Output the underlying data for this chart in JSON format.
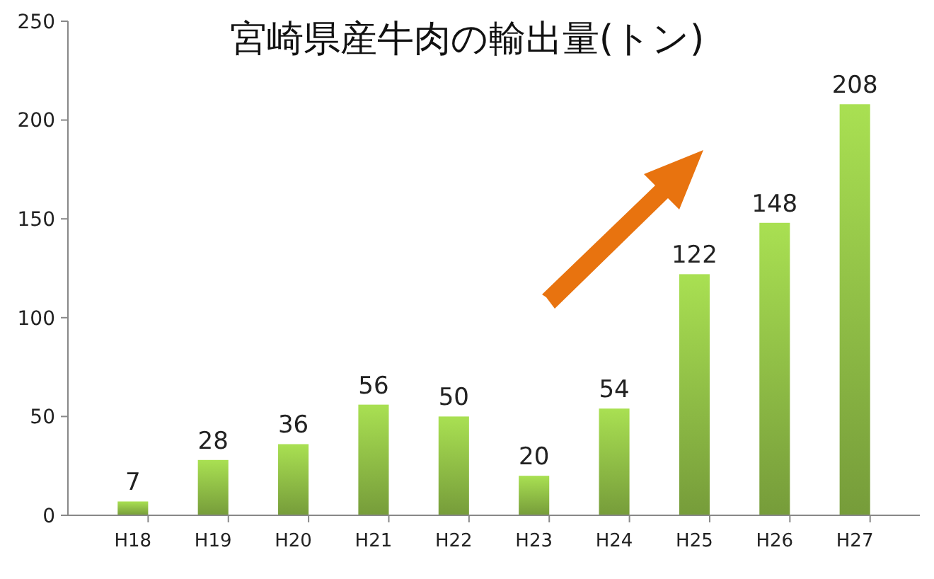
{
  "chart_data": {
    "type": "bar",
    "title": "宮崎県産牛肉の輸出量(トン)",
    "categories": [
      "H18",
      "H19",
      "H20",
      "H21",
      "H22",
      "H23",
      "H24",
      "H25",
      "H26",
      "H27"
    ],
    "values": [
      7,
      28,
      36,
      56,
      50,
      20,
      54,
      122,
      148,
      208
    ],
    "color": "#8dbb45",
    "ylim": [
      0,
      250
    ],
    "yticks": [
      0,
      50,
      100,
      150,
      200,
      250
    ],
    "data_labels": true
  }
}
